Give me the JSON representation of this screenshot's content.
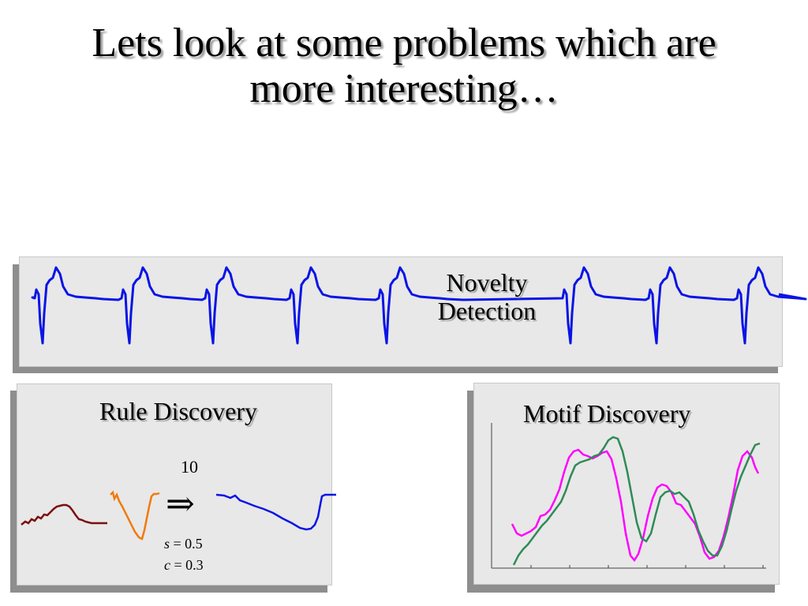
{
  "slide": {
    "title_line1": "Lets look at some problems which are",
    "title_line2": "more interesting…"
  },
  "novelty_panel": {
    "label_line1": "Novelty",
    "label_line2": "Detection",
    "series_color": "#0a14e6"
  },
  "rule_panel": {
    "label": "Rule Discovery",
    "window_value": "10",
    "implies_symbol": "⇒",
    "support_var": "s",
    "support_value": " = 0.5",
    "confidence_var": "c",
    "confidence_value": " = 0.3",
    "colors": {
      "antecedent_1": "#7b1010",
      "antecedent_2": "#f07a0a",
      "consequent": "#0a14e6"
    }
  },
  "motif_panel": {
    "label": "Motif Discovery",
    "colors": {
      "series_1": "#ff00ff",
      "series_2": "#2e8b57"
    }
  }
}
